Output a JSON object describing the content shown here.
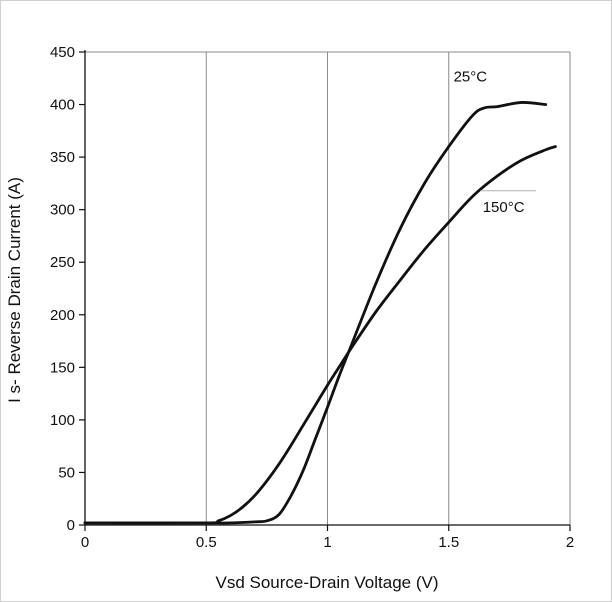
{
  "chart_data": {
    "type": "line",
    "title": "",
    "xlabel": "Vsd Source-Drain Voltage (V)",
    "ylabel": "I s- Reverse Drain Current (A)",
    "xlim": [
      0,
      2
    ],
    "ylim": [
      0,
      450
    ],
    "x_ticks": [
      "0",
      "0.5",
      "1",
      "1.5",
      "2"
    ],
    "y_ticks": [
      "0",
      "50",
      "100",
      "150",
      "200",
      "250",
      "300",
      "350",
      "400",
      "450"
    ],
    "grid": "vertical",
    "legend": "none",
    "series": [
      {
        "name": "25°C",
        "x": [
          0,
          0.5,
          0.6,
          0.7,
          0.75,
          0.8,
          0.85,
          0.9,
          0.95,
          1.0,
          1.05,
          1.1,
          1.2,
          1.3,
          1.4,
          1.5,
          1.6,
          1.65,
          1.7,
          1.8,
          1.9
        ],
        "y": [
          2,
          2,
          2,
          3,
          4,
          10,
          28,
          52,
          82,
          112,
          143,
          172,
          230,
          282,
          325,
          360,
          390,
          397,
          398,
          402,
          400
        ],
        "label_at": [
          1.52,
          422
        ]
      },
      {
        "name": "150°C",
        "x": [
          0,
          0.5,
          0.55,
          0.6,
          0.65,
          0.7,
          0.75,
          0.8,
          0.85,
          0.9,
          0.95,
          1.0,
          1.05,
          1.1,
          1.2,
          1.3,
          1.4,
          1.5,
          1.6,
          1.7,
          1.8,
          1.9,
          1.94
        ],
        "y": [
          2,
          2,
          4,
          9,
          17,
          28,
          42,
          58,
          76,
          95,
          114,
          133,
          151,
          169,
          203,
          233,
          262,
          288,
          313,
          332,
          347,
          357,
          360
        ],
        "label_at": [
          1.64,
          298
        ]
      }
    ],
    "colors": {
      "line": "#111111",
      "grid": "#8a8a8a",
      "axis": "#111111"
    }
  }
}
